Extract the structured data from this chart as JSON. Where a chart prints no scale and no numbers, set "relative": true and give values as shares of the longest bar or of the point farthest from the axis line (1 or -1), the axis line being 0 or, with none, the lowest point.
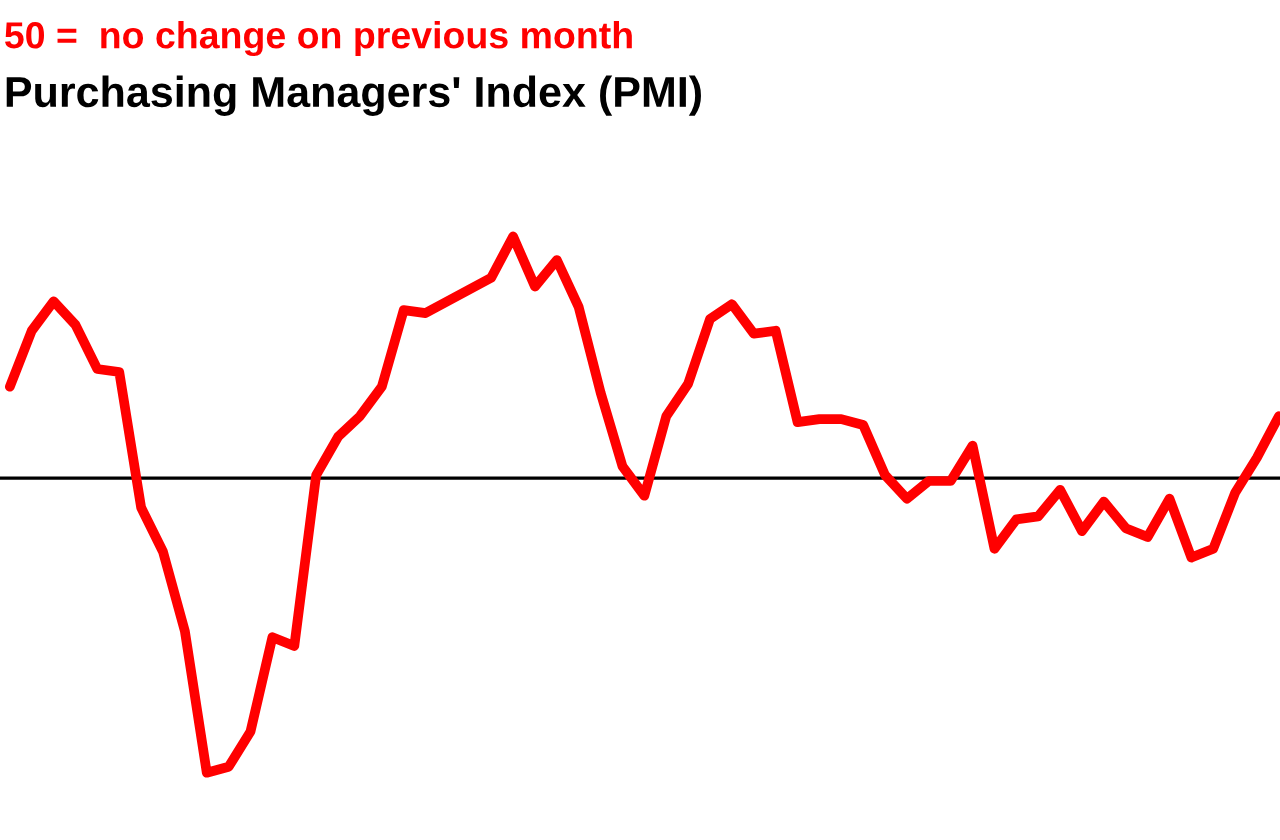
{
  "chart_data": {
    "type": "line",
    "relative": true,
    "subtitle": "50 =  no change on previous month",
    "title": "Purchasing Managers' Index (PMI)",
    "categories": [
      null,
      null,
      null,
      null,
      null,
      null,
      null,
      null,
      null,
      null,
      null,
      null,
      null,
      null,
      null,
      null,
      null,
      null,
      null,
      null,
      null,
      null,
      null,
      null,
      null,
      null,
      null,
      null,
      null,
      null,
      null,
      null,
      null,
      null,
      null,
      null,
      null,
      null,
      null,
      null,
      null,
      null,
      null,
      null,
      null,
      null,
      null,
      null,
      null,
      null,
      null,
      null,
      null,
      null,
      null,
      null,
      null,
      null,
      null
    ],
    "series": [
      {
        "color": "#ff0000",
        "values": [
          0.31,
          0.5,
          0.6,
          0.52,
          0.37,
          0.36,
          -0.1,
          -0.25,
          -0.52,
          -1.0,
          -0.98,
          -0.86,
          -0.54,
          -0.57,
          0.01,
          0.14,
          0.21,
          0.31,
          0.57,
          0.56,
          0.6,
          0.64,
          0.68,
          0.82,
          0.65,
          0.74,
          0.58,
          0.29,
          0.04,
          -0.06,
          0.21,
          0.32,
          0.54,
          0.59,
          0.49,
          0.5,
          0.19,
          0.2,
          0.2,
          0.18,
          0.01,
          -0.07,
          -0.01,
          -0.01,
          0.11,
          -0.24,
          -0.14,
          -0.13,
          -0.04,
          -0.18,
          -0.08,
          -0.17,
          -0.2,
          -0.07,
          -0.27,
          -0.24,
          -0.05,
          0.07,
          0.21
        ]
      }
    ],
    "ref_lines": [
      {
        "axis": "y",
        "value": 0,
        "color": "#000000"
      }
    ],
    "marker": "none",
    "line_style": "solid"
  }
}
